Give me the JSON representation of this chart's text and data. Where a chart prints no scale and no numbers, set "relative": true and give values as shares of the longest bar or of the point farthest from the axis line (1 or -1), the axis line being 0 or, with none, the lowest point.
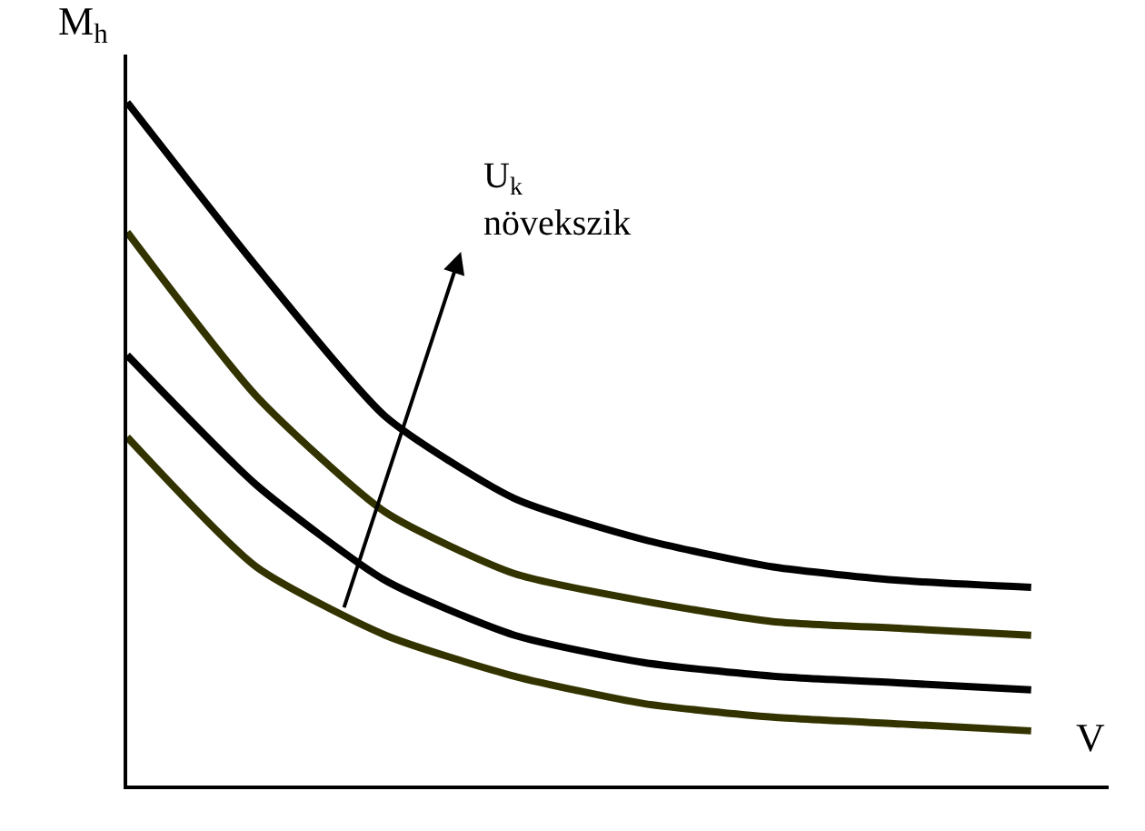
{
  "chart_data": {
    "type": "line",
    "relative": true,
    "ylabel": "M$_{h}$",
    "xlabel": "V",
    "categories": [
      null,
      null,
      null,
      null,
      null,
      null,
      null,
      null
    ],
    "series": [
      {
        "color": "#000000",
        "values": [
          1,
          0.76,
          0.54,
          0.42,
          0.36,
          0.32,
          0.3,
          0.29
        ]
      },
      {
        "color": "#333300",
        "values": [
          0.81,
          0.57,
          0.4,
          0.31,
          0.27,
          0.24,
          0.23,
          0.22
        ]
      },
      {
        "color": "#000000",
        "values": [
          0.63,
          0.44,
          0.3,
          0.22,
          0.18,
          0.16,
          0.15,
          0.14
        ]
      },
      {
        "color": "#333300",
        "values": [
          0.51,
          0.32,
          0.22,
          0.16,
          0.12,
          0.1,
          0.09,
          0.08
        ]
      }
    ],
    "annotations": [
      "U$_{k}$\nnövekszik"
    ],
    "marker": "none",
    "line_style": "solid"
  }
}
